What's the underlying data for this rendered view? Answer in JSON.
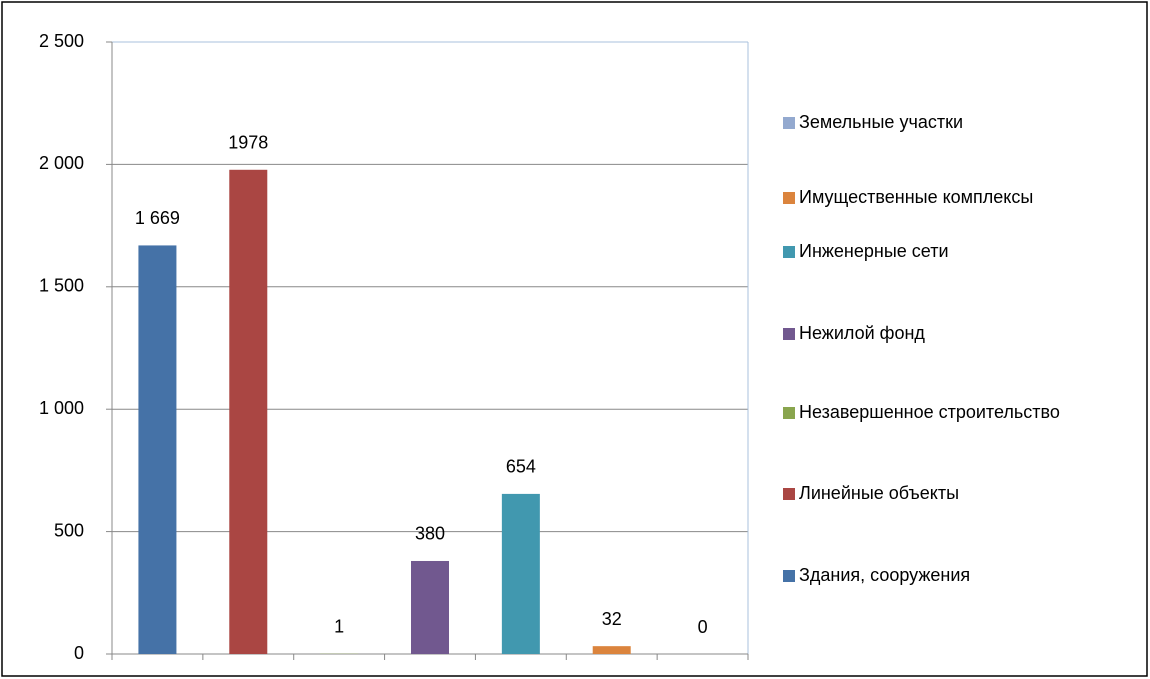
{
  "chart_data": {
    "type": "bar",
    "categories": [
      null,
      null,
      null,
      null,
      null,
      null,
      null
    ],
    "ylim": [
      0,
      2500
    ],
    "yticks": [
      0,
      500,
      {
        "value": 1000,
        "label": "1 000"
      },
      {
        "value": 1500,
        "label": "1 500"
      },
      {
        "value": 2000,
        "label": "2 000"
      },
      {
        "value": 2500,
        "label": "2 500"
      }
    ],
    "grid": true,
    "legend": "right",
    "series": [
      {
        "name": "Здания, сооружения",
        "color": "#4572a7",
        "values": [
          1669,
          null,
          null,
          null,
          null,
          null,
          null
        ],
        "value_labels": [
          "1 669",
          null,
          null,
          null,
          null,
          null,
          null
        ]
      },
      {
        "name": "Линейные объекты",
        "color": "#aa4643",
        "values": [
          null,
          1978,
          null,
          null,
          null,
          null,
          null
        ]
      },
      {
        "name": "Незавершенное строительство",
        "color": "#89a54e",
        "values": [
          null,
          null,
          1,
          null,
          null,
          null,
          null
        ]
      },
      {
        "name": "Нежилой фонд",
        "color": "#71588f",
        "values": [
          null,
          null,
          null,
          380,
          null,
          null,
          null
        ]
      },
      {
        "name": "Инженерные сети",
        "color": "#4198af",
        "values": [
          null,
          null,
          null,
          null,
          654,
          null,
          null
        ]
      },
      {
        "name": "Имущественные комплексы",
        "color": "#db843d",
        "values": [
          null,
          null,
          null,
          null,
          null,
          32,
          null
        ]
      },
      {
        "name": "Земельные участки",
        "color": "#93a9cf",
        "values": [
          null,
          null,
          null,
          null,
          null,
          null,
          0
        ]
      }
    ]
  }
}
